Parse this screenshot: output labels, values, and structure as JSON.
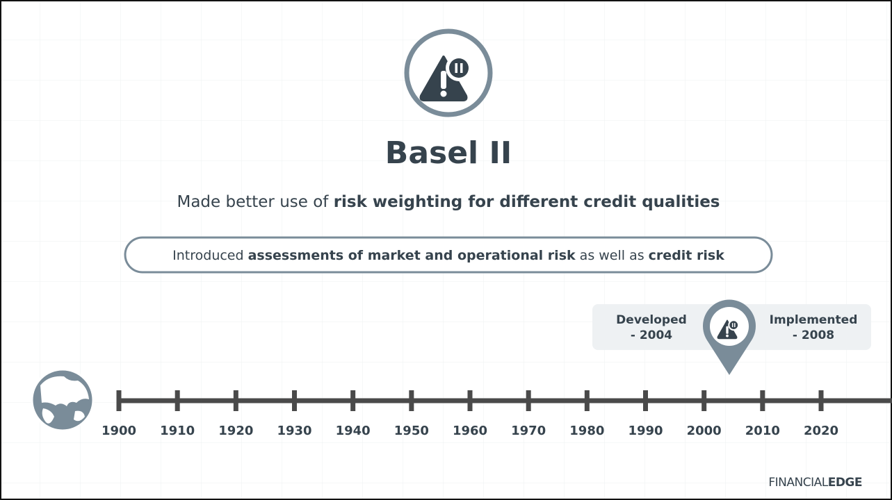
{
  "header": {
    "title": "Basel II",
    "subtitle": [
      {
        "text": "Made better use of ",
        "bold": false
      },
      {
        "text": "risk weighting for different credit qualities",
        "bold": true
      }
    ]
  },
  "callout": [
    {
      "text": "Introduced ",
      "bold": false
    },
    {
      "text": "assessments of market and operational risk",
      "bold": true
    },
    {
      "text": " as well as ",
      "bold": false
    },
    {
      "text": "credit risk",
      "bold": true
    }
  ],
  "pin": {
    "left": [
      "Developed",
      "- 2004"
    ],
    "right": [
      "Implemented",
      "- 2008"
    ]
  },
  "timeline": {
    "years": [
      1900,
      1910,
      1920,
      1930,
      1940,
      1950,
      1960,
      1970,
      1980,
      1990,
      2000,
      2010,
      2020
    ]
  },
  "logo": [
    {
      "text": "FINANCIAL",
      "bold": false
    },
    {
      "text": "EDGE",
      "bold": true
    }
  ]
}
